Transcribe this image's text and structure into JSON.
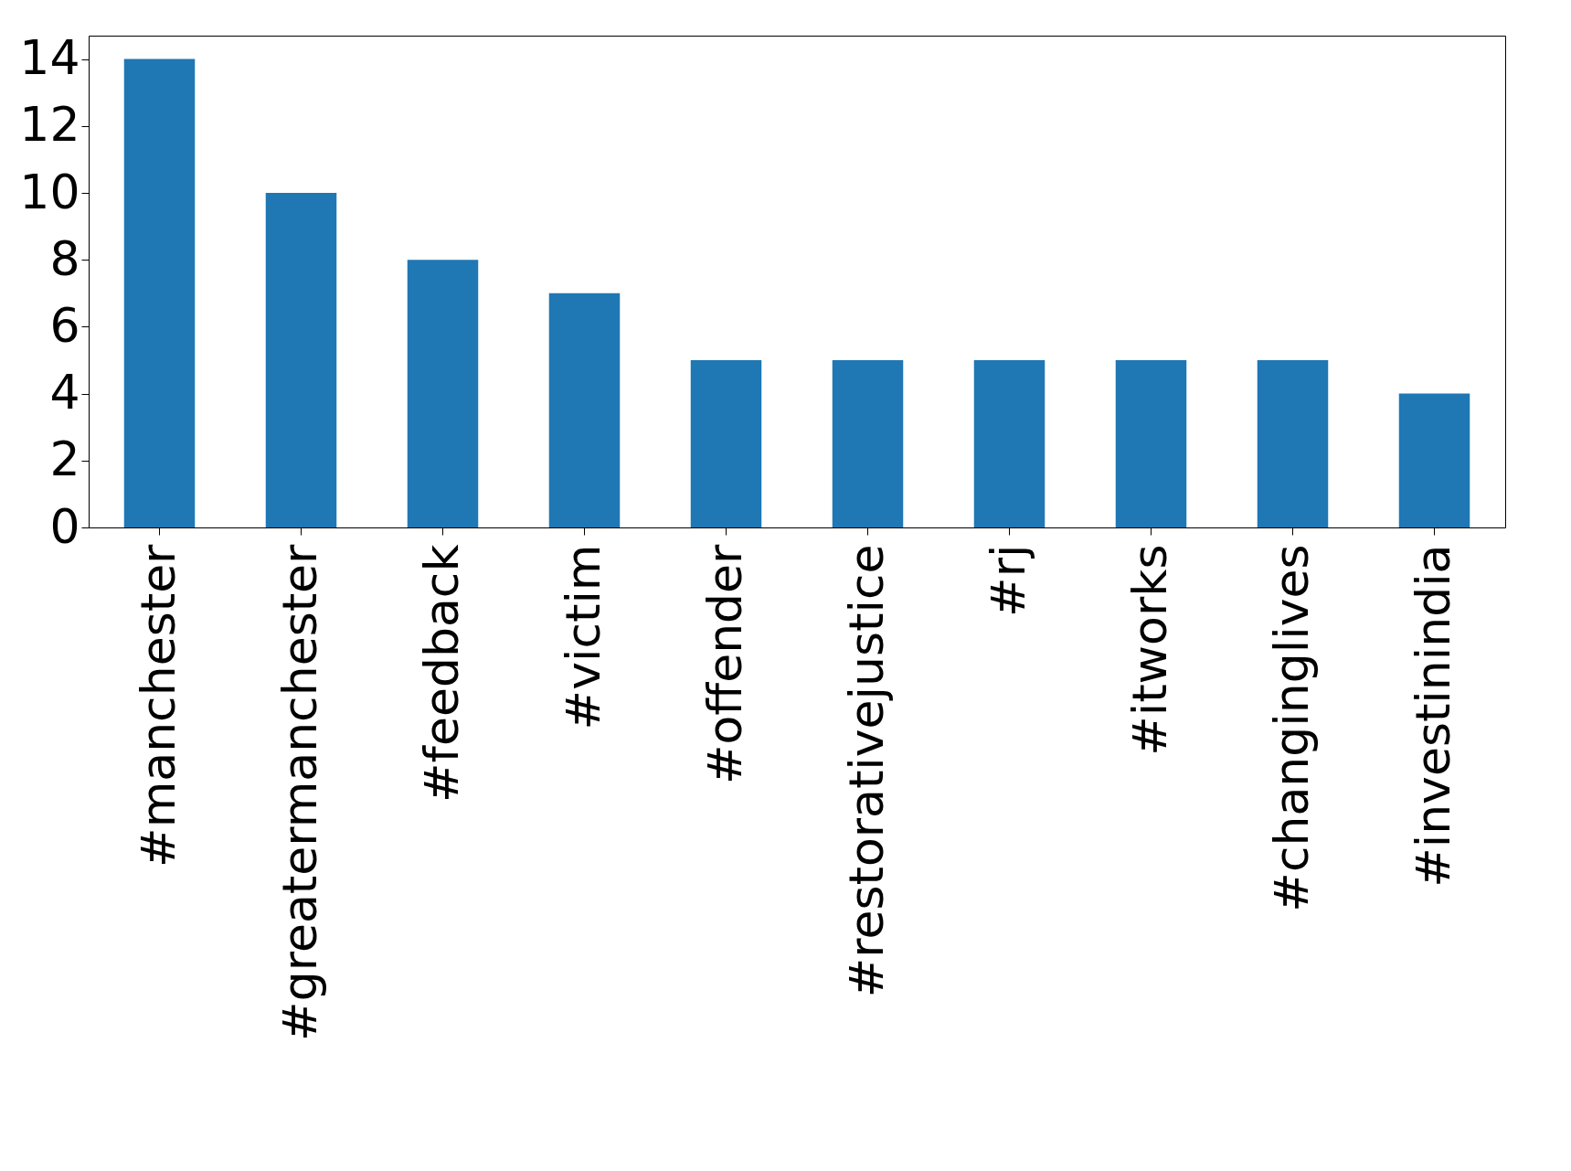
{
  "chart_data": {
    "type": "bar",
    "categories": [
      "#manchester",
      "#greatermanchester",
      "#feedback",
      "#victim",
      "#offender",
      "#restorativejustice",
      "#rj",
      "#itworks",
      "#changinglives",
      "#investinindia"
    ],
    "values": [
      14,
      10,
      8,
      7,
      5,
      5,
      5,
      5,
      5,
      4
    ],
    "color": "#1f77b4",
    "ylim": [
      0,
      14.7
    ],
    "yticks": [
      0,
      2,
      4,
      6,
      8,
      10,
      12,
      14
    ],
    "grid": false
  }
}
